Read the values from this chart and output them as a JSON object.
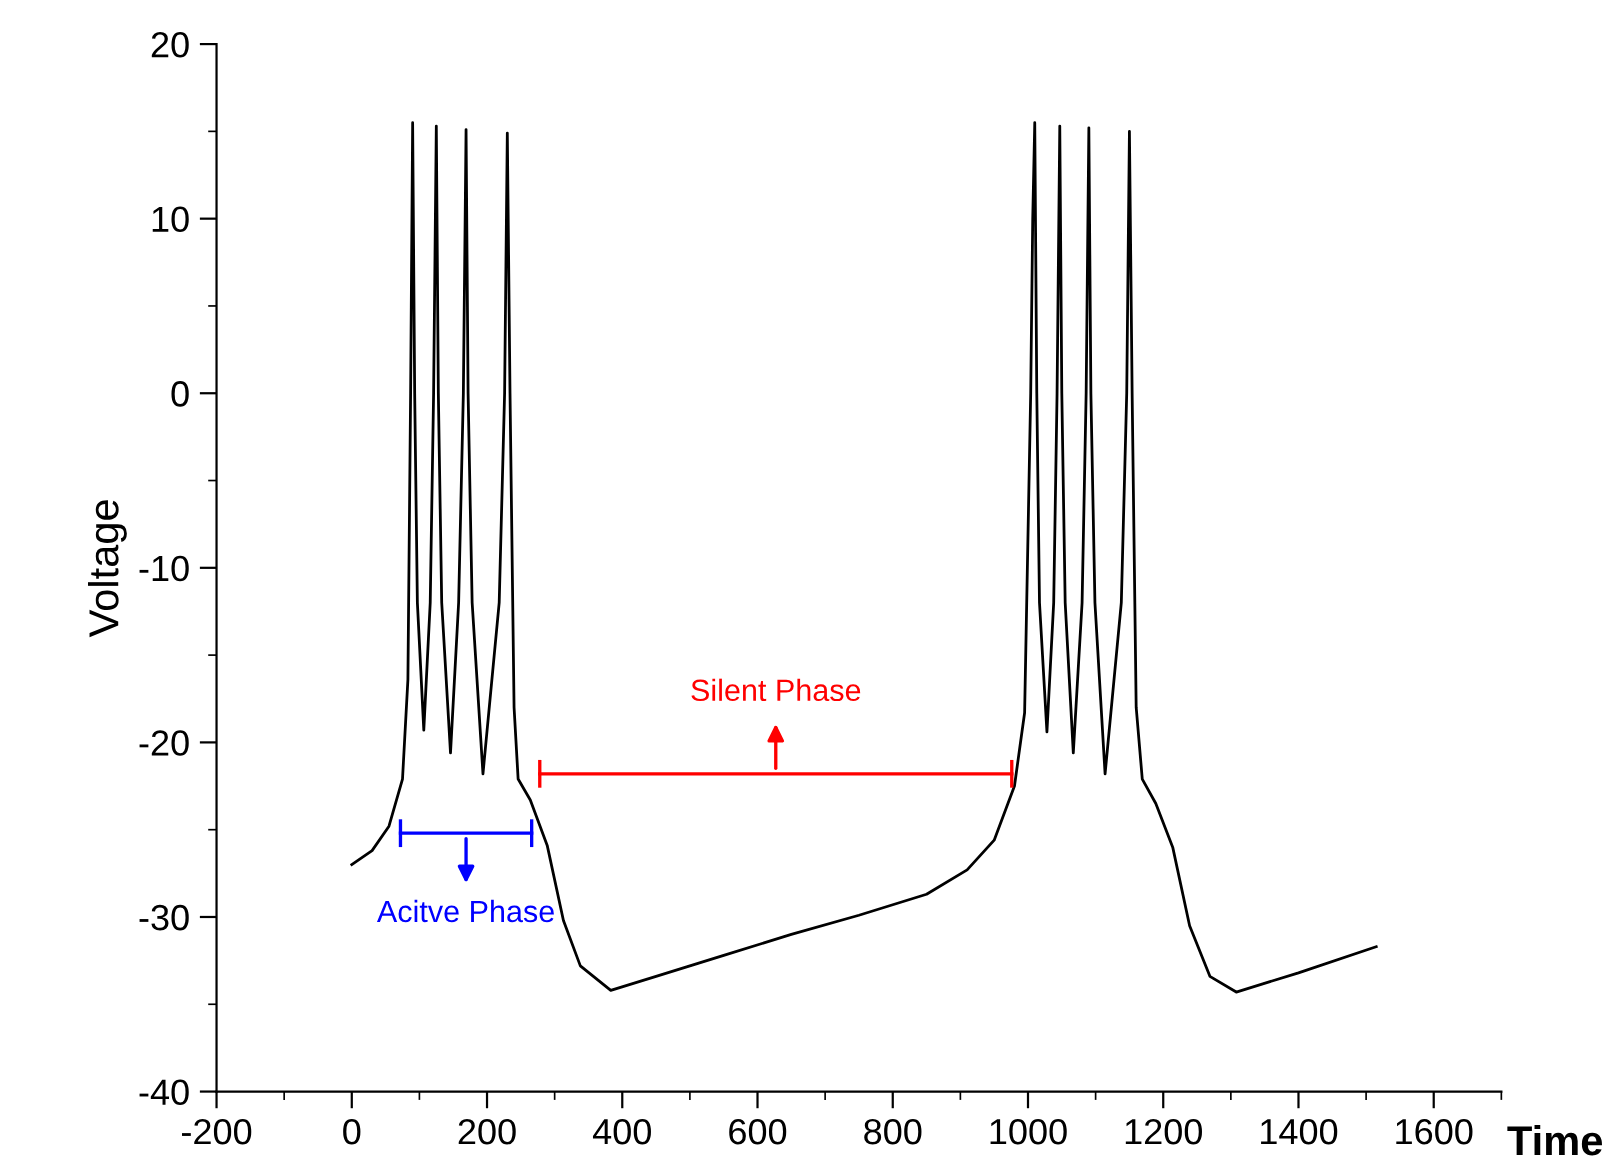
{
  "chart_data": {
    "type": "line",
    "xlabel": "Time",
    "ylabel": "Voltage",
    "xlim": [
      -200,
      1700
    ],
    "xticks": [
      -200,
      0,
      200,
      400,
      600,
      800,
      1000,
      1200,
      1400,
      1600
    ],
    "ylim": [
      -40,
      20
    ],
    "yticks": [
      -40,
      -30,
      -20,
      -10,
      0,
      10,
      20
    ],
    "grid": false,
    "legend": false,
    "series": [
      {
        "color": "#000000",
        "x": [
          0,
          30,
          55,
          75,
          83,
          87,
          90,
          93,
          97,
          106.5,
          116,
          121,
          125,
          128,
          133,
          146,
          158,
          165,
          169,
          172,
          178,
          194,
          218,
          226,
          230,
          234,
          240,
          246,
          264,
          289,
          313,
          338,
          383,
          450,
          550,
          650,
          750,
          850,
          910,
          950,
          980,
          995,
          1004,
          1007,
          1010,
          1013,
          1017,
          1028,
          1038,
          1043,
          1047,
          1050,
          1055,
          1067,
          1080,
          1086,
          1090,
          1093,
          1099,
          1114,
          1138,
          1146,
          1150,
          1154,
          1160,
          1169,
          1189,
          1214,
          1239,
          1269,
          1308,
          1400,
          1515
        ],
        "values": [
          -27.0,
          -26.2,
          -24.8,
          -22.1,
          -16.4,
          0,
          15.5,
          0,
          -12,
          -19.3,
          -12,
          0,
          15.3,
          0,
          -12,
          -20.6,
          -12,
          0,
          15.1,
          0,
          -12,
          -21.8,
          -12,
          0,
          14.9,
          0,
          -18,
          -22.1,
          -23.3,
          -25.9,
          -30.2,
          -32.8,
          -34.2,
          -33.4,
          -32.2,
          -31.0,
          -29.9,
          -28.7,
          -27.3,
          -25.6,
          -22.5,
          -18.3,
          0,
          10,
          15.5,
          0,
          -12,
          -19.4,
          -12,
          0,
          15.3,
          0,
          -12,
          -20.6,
          -12,
          0,
          15.2,
          0,
          -12,
          -21.8,
          -12,
          0,
          15.0,
          0,
          -18,
          -22.1,
          -23.5,
          -26.0,
          -30.5,
          -33.4,
          -34.3,
          -33.2,
          -31.7
        ]
      },
      {
        "type": "line",
        "color": "#0000ff",
        "x": [
          72,
          266
        ],
        "values": [
          -25.2,
          -25.2
        ]
      },
      {
        "type": "line",
        "color": "#ff0000",
        "x": [
          278,
          976
        ],
        "values": [
          -21.8,
          -21.8
        ]
      }
    ],
    "annotations": [
      "Acitve Phase",
      "Silent Phase"
    ]
  }
}
